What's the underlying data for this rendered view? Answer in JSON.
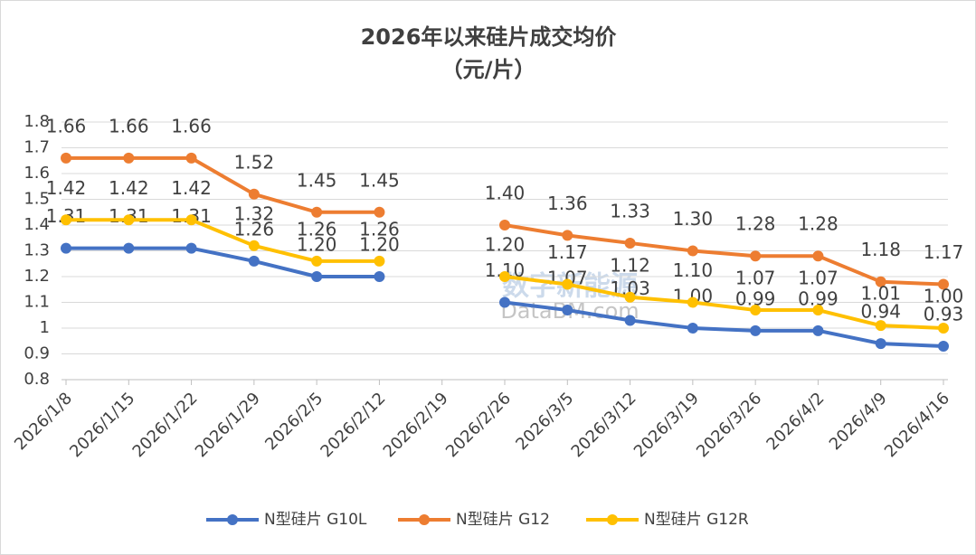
{
  "chart_data": {
    "type": "line",
    "title": "2026年以来硅片成交均价",
    "subtitle": "（元/片）",
    "watermark": [
      "数字新能源",
      "DataBM.com"
    ],
    "categories": [
      "2026/1/8",
      "2026/1/15",
      "2026/1/22",
      "2026/1/29",
      "2026/2/5",
      "2026/2/12",
      "2026/2/19",
      "2026/2/26",
      "2026/3/5",
      "2026/3/12",
      "2026/3/19",
      "2026/3/26",
      "2026/4/2",
      "2026/4/9",
      "2026/4/16"
    ],
    "series": [
      {
        "name": "N型硅片 G10L",
        "color": "#4472c4",
        "values": [
          1.31,
          1.31,
          1.31,
          1.26,
          1.2,
          1.2,
          null,
          1.1,
          1.07,
          1.03,
          1,
          0.99,
          0.99,
          0.94,
          0.93
        ],
        "value_labels": [
          "1.31",
          "1.31",
          "1.31",
          "1.26",
          "1.20",
          "1.20",
          null,
          "1.10",
          "1.07",
          "1.03",
          "1.00",
          "0.99",
          "0.99",
          "0.94",
          "0.93"
        ]
      },
      {
        "name": "N型硅片 G12",
        "color": "#ed7d31",
        "values": [
          1.66,
          1.66,
          1.66,
          1.52,
          1.45,
          1.45,
          null,
          1.4,
          1.36,
          1.33,
          1.3,
          1.28,
          1.28,
          1.18,
          1.17
        ],
        "value_labels": [
          "1.66",
          "1.66",
          "1.66",
          "1.52",
          "1.45",
          "1.45",
          null,
          "1.40",
          "1.36",
          "1.33",
          "1.30",
          "1.28",
          "1.28",
          "1.18",
          "1.17"
        ]
      },
      {
        "name": "N型硅片 G12R",
        "color": "#ffc000",
        "values": [
          1.42,
          1.42,
          1.42,
          1.32,
          1.26,
          1.26,
          null,
          1.2,
          1.17,
          1.12,
          1.1,
          1.07,
          1.07,
          1.01,
          1
        ],
        "value_labels": [
          "1.42",
          "1.42",
          "1.42",
          "1.32",
          "1.26",
          "1.26",
          null,
          "1.20",
          "1.17",
          "1.12",
          "1.10",
          "1.07",
          "1.07",
          "1.01",
          "1.00"
        ]
      }
    ],
    "ylim": [
      0.8,
      1.8
    ],
    "yticks": [
      0.8,
      0.9,
      1,
      1.1,
      1.2,
      1.3,
      1.4,
      1.5,
      1.6,
      1.7,
      1.8
    ],
    "grid": true,
    "legend": "bottom"
  }
}
